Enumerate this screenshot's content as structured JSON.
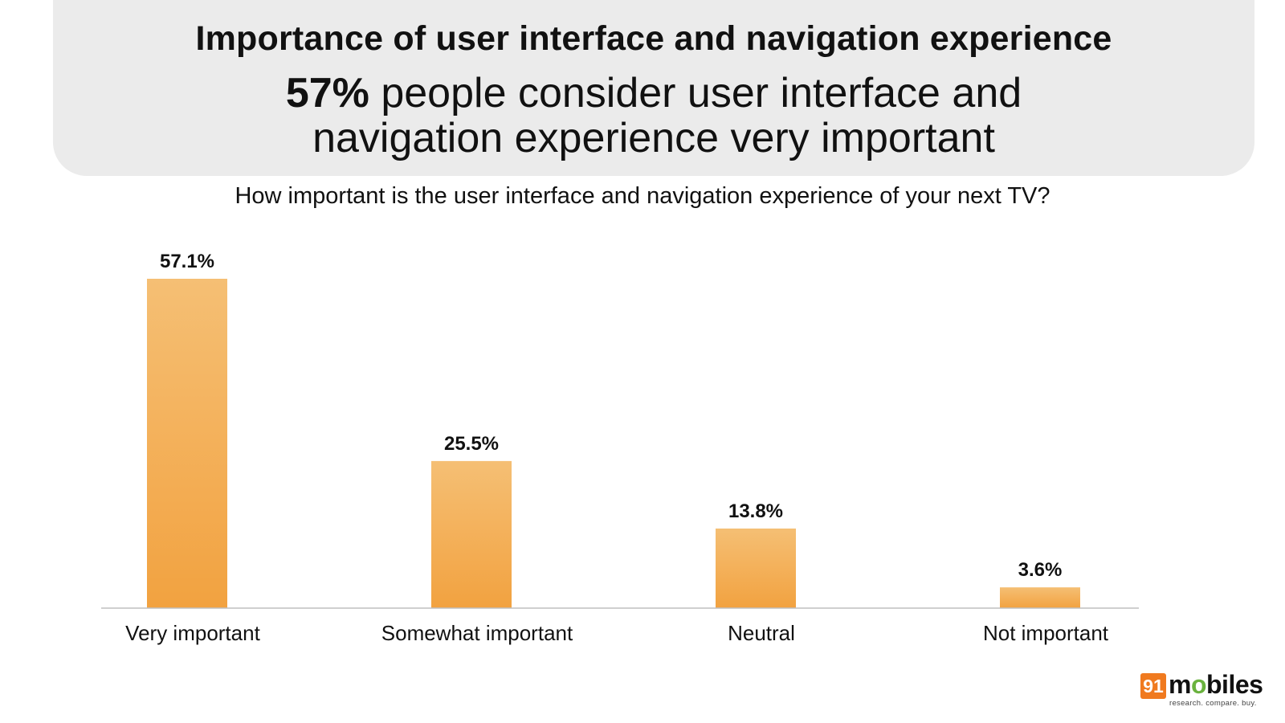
{
  "header": {
    "title": "Importance of user interface and navigation experience",
    "headline_stat": "57%",
    "headline_line1": " people consider user interface and",
    "headline_line2": "navigation experience very important"
  },
  "question": "How important is the user interface and navigation experience of your next TV?",
  "chart_data": {
    "type": "bar",
    "title": "How important is the user interface and navigation experience of your next TV?",
    "categories": [
      "Very important",
      "Somewhat important",
      "Neutral",
      "Not important"
    ],
    "values": [
      57.1,
      25.5,
      13.8,
      3.6
    ],
    "value_labels": [
      "57.1%",
      "25.5%",
      "13.8%",
      "3.6%"
    ],
    "xlabel": "",
    "ylabel": "",
    "ylim": [
      0,
      57.1
    ],
    "grid": false,
    "bar_color_top": "#f5bf74",
    "bar_color_bottom": "#f2a240",
    "axis_color": "#bfbfbf"
  },
  "brand": {
    "badge": "91",
    "word_start": "m",
    "word_icon": "o",
    "word_end": "biles",
    "tagline": "research. compare. buy.",
    "badge_color": "#f07a1f",
    "icon_color": "#6ab23e"
  }
}
